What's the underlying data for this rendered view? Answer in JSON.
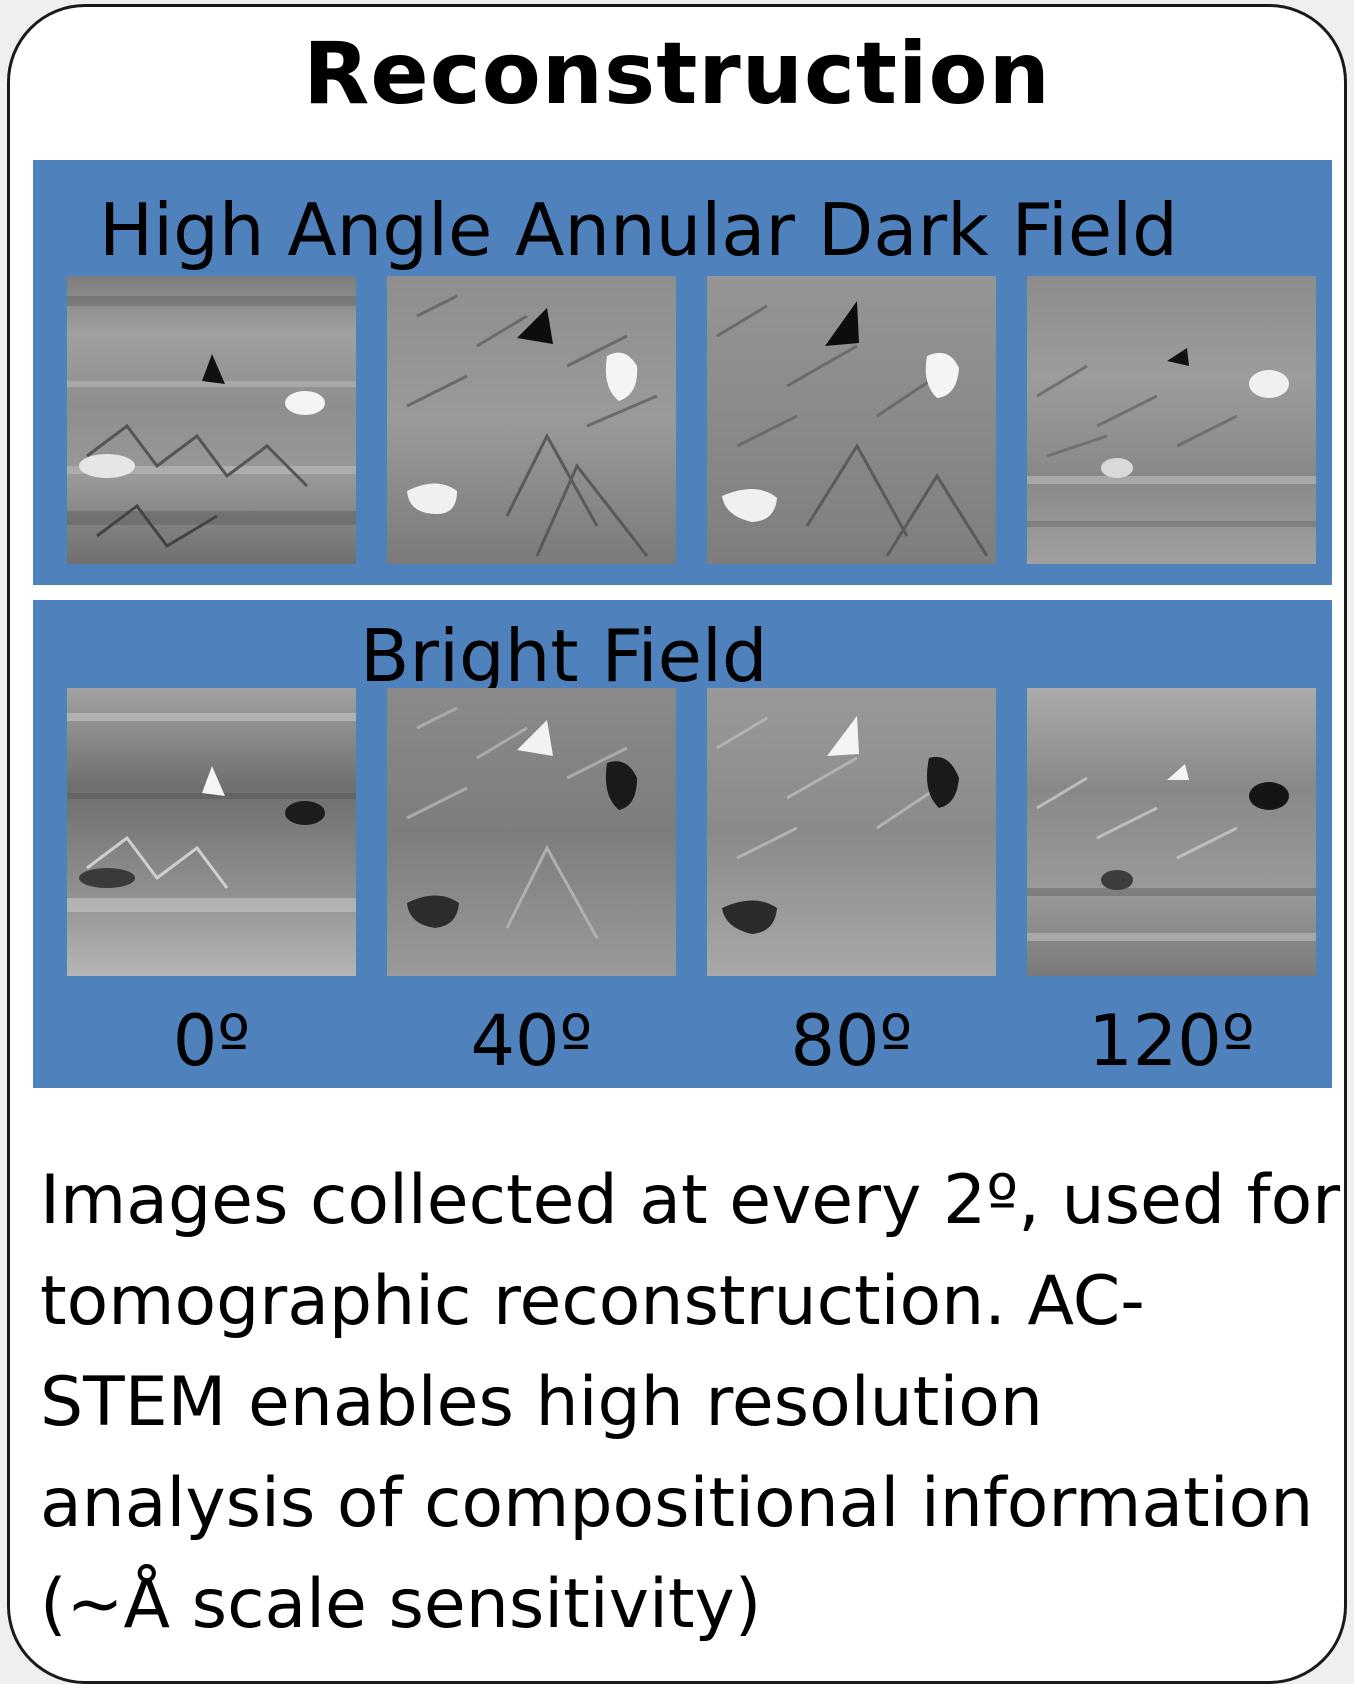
{
  "title": "Reconstruction",
  "haadf": {
    "label": "High Angle Annular Dark Field"
  },
  "bright_field": {
    "label": "Bright Field"
  },
  "angles": [
    "0º",
    "40º",
    "80º",
    "120º"
  ],
  "caption_lines": [
    "Images collected at every 2º, used for",
    "tomographic reconstruction.  AC-",
    "STEM enables high resolution",
    "analysis of compositional information",
    "(~Å scale sensitivity)"
  ]
}
